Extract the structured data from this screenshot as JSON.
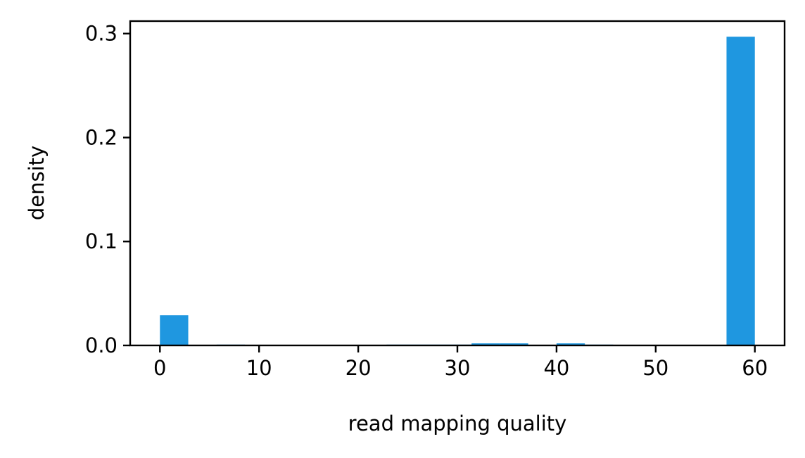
{
  "chart_data": {
    "type": "bar",
    "title": "",
    "xlabel": "read mapping quality",
    "ylabel": "density",
    "xlim": [
      -3,
      63
    ],
    "ylim": [
      0,
      0.312
    ],
    "xticks": [
      0,
      10,
      20,
      30,
      40,
      50,
      60
    ],
    "xtick_labels": [
      "0",
      "10",
      "20",
      "30",
      "40",
      "50",
      "60"
    ],
    "yticks": [
      0.0,
      0.1,
      0.2,
      0.3
    ],
    "ytick_labels": [
      "0.0",
      "0.1",
      "0.2",
      "0.3"
    ],
    "bin_width": 2.857,
    "bins": [
      {
        "start": 0.0,
        "value": 0.029
      },
      {
        "start": 2.857,
        "value": 0.0
      },
      {
        "start": 5.714,
        "value": 0.0008
      },
      {
        "start": 8.571,
        "value": 0.0
      },
      {
        "start": 11.429,
        "value": 0.0
      },
      {
        "start": 14.286,
        "value": 0.0
      },
      {
        "start": 17.143,
        "value": 0.0
      },
      {
        "start": 20.0,
        "value": 0.0
      },
      {
        "start": 22.857,
        "value": 0.0008
      },
      {
        "start": 25.714,
        "value": 0.0008
      },
      {
        "start": 28.571,
        "value": 0.0008
      },
      {
        "start": 31.429,
        "value": 0.002
      },
      {
        "start": 34.286,
        "value": 0.002
      },
      {
        "start": 37.143,
        "value": 0.0
      },
      {
        "start": 40.0,
        "value": 0.002
      },
      {
        "start": 42.857,
        "value": 0.0008
      },
      {
        "start": 45.714,
        "value": 0.0
      },
      {
        "start": 48.571,
        "value": 0.0
      },
      {
        "start": 51.429,
        "value": 0.0
      },
      {
        "start": 54.286,
        "value": 0.0
      },
      {
        "start": 57.143,
        "value": 0.297
      }
    ],
    "bar_color": "#1f97e0",
    "grid": false,
    "legend": "none"
  }
}
